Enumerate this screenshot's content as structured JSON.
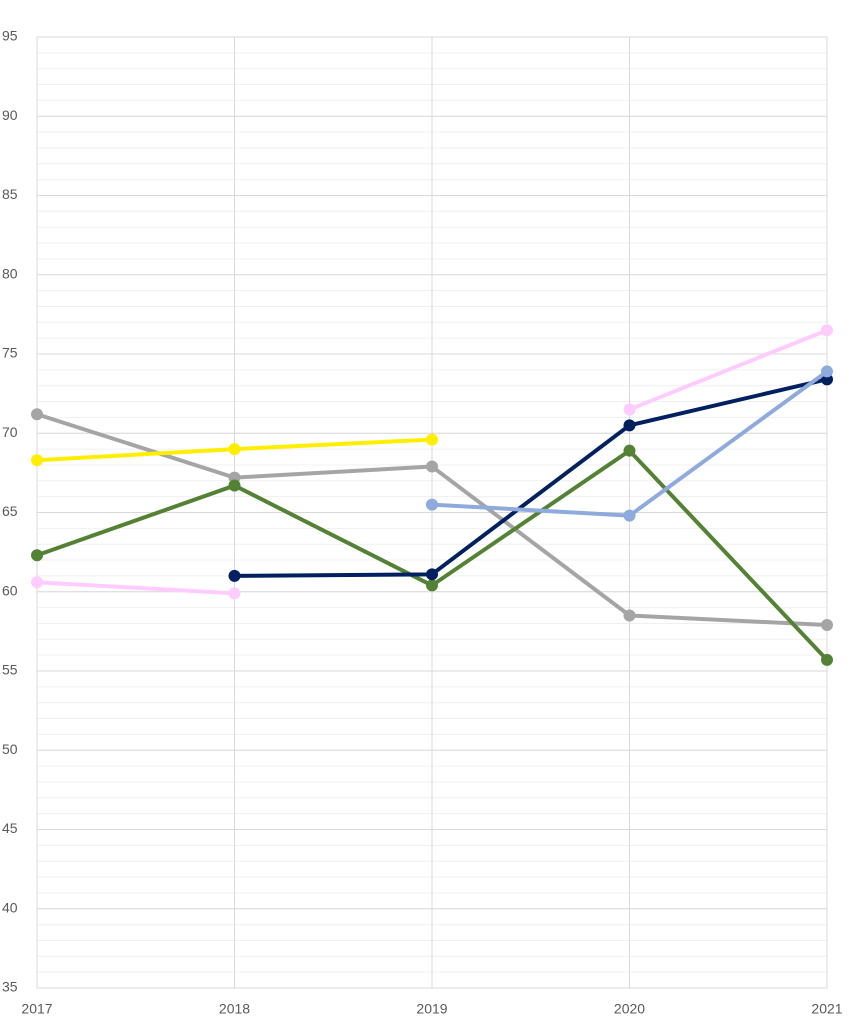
{
  "chart_data": {
    "type": "line",
    "categories": [
      "2017",
      "2018",
      "2019",
      "2020",
      "2021"
    ],
    "series": [
      {
        "color": "#a5a5a5",
        "values": [
          71.2,
          67.2,
          67.9,
          58.5,
          57.9
        ]
      },
      {
        "color": "#ffee00",
        "values": [
          68.3,
          69.0,
          69.6,
          null,
          null
        ]
      },
      {
        "color": "#548235",
        "values": [
          62.3,
          66.7,
          60.4,
          68.9,
          55.7
        ]
      },
      {
        "color": "#ffccff",
        "values": [
          60.6,
          59.9,
          null,
          71.5,
          76.5
        ]
      },
      {
        "color": "#002060",
        "values": [
          null,
          61.0,
          61.1,
          70.5,
          73.4
        ]
      },
      {
        "color": "#8faadc",
        "values": [
          null,
          null,
          65.5,
          64.8,
          73.9
        ]
      }
    ],
    "ylim": [
      35,
      95
    ],
    "yticks": [
      35,
      40,
      45,
      50,
      55,
      60,
      65,
      70,
      75,
      80,
      85,
      90,
      95
    ],
    "grid": true,
    "minor_grid": true
  }
}
